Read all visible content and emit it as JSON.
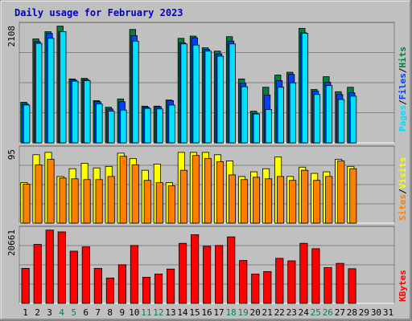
{
  "colors": {
    "background": "#c0c0c0",
    "plot_bg": "#c0c0c0",
    "title": "#0000cc",
    "hits": "#008040",
    "files": "#0040ff",
    "pages": "#00e0ff",
    "visits": "#ffff00",
    "sites": "#ff8000",
    "kbytes": "#ff0000",
    "axis_weekday": "#000000",
    "axis_weekend": "#00805c"
  },
  "chart_data": [
    {
      "type": "bar",
      "title": "Daily usage for February 2023",
      "ymax_label": "2108",
      "ylim": [
        0,
        2108
      ],
      "legend": [
        "Pages",
        "/",
        "Files",
        "/",
        "Hits"
      ],
      "categories": [
        "1",
        "2",
        "3",
        "4",
        "5",
        "6",
        "7",
        "8",
        "9",
        "10",
        "11",
        "12",
        "13",
        "14",
        "15",
        "16",
        "17",
        "18",
        "19",
        "20",
        "21",
        "22",
        "23",
        "24",
        "25",
        "26",
        "27",
        "28",
        "29",
        "30",
        "31"
      ],
      "weekend_days": [
        "4",
        "5",
        "11",
        "12",
        "18",
        "19",
        "25",
        "26"
      ],
      "series": [
        {
          "name": "Hits",
          "values": [
            730,
            1870,
            2000,
            2100,
            1150,
            1160,
            760,
            640,
            790,
            2040,
            660,
            660,
            770,
            1880,
            1920,
            1710,
            1650,
            1910,
            1150,
            570,
            1000,
            1220,
            1270,
            2060,
            960,
            1190,
            920,
            1000,
            0,
            0,
            0
          ]
        },
        {
          "name": "Files",
          "values": [
            700,
            1820,
            1970,
            2000,
            1130,
            1140,
            740,
            610,
            740,
            1930,
            640,
            650,
            760,
            1800,
            1890,
            1680,
            1600,
            1830,
            1070,
            530,
            860,
            1120,
            1230,
            1980,
            930,
            1090,
            870,
            900,
            0,
            0,
            0
          ]
        },
        {
          "name": "Pages",
          "values": [
            680,
            1790,
            1880,
            2000,
            1110,
            1120,
            700,
            570,
            590,
            1830,
            620,
            610,
            680,
            1780,
            1760,
            1650,
            1560,
            1780,
            1010,
            520,
            600,
            1000,
            1080,
            1970,
            870,
            1030,
            780,
            840,
            0,
            0,
            0
          ]
        }
      ]
    },
    {
      "type": "bar",
      "ymax_label": "95",
      "ylim": [
        0,
        95
      ],
      "legend": [
        "Sites",
        "/",
        "Visits"
      ],
      "categories": [
        "1",
        "2",
        "3",
        "4",
        "5",
        "6",
        "7",
        "8",
        "9",
        "10",
        "11",
        "12",
        "13",
        "14",
        "15",
        "16",
        "17",
        "18",
        "19",
        "20",
        "21",
        "22",
        "23",
        "24",
        "25",
        "26",
        "27",
        "28",
        "29",
        "30",
        "31"
      ],
      "series": [
        {
          "name": "Visits",
          "values": [
            52,
            88,
            91,
            60,
            70,
            77,
            71,
            73,
            90,
            83,
            68,
            76,
            52,
            91,
            91,
            91,
            88,
            80,
            60,
            66,
            70,
            85,
            60,
            72,
            64,
            66,
            82,
            73,
            0,
            0,
            0
          ]
        },
        {
          "name": "Sites",
          "values": [
            50,
            75,
            82,
            58,
            57,
            56,
            56,
            60,
            86,
            75,
            55,
            52,
            48,
            68,
            87,
            83,
            79,
            62,
            56,
            59,
            57,
            60,
            55,
            68,
            55,
            60,
            80,
            70,
            0,
            0,
            0
          ]
        }
      ]
    },
    {
      "type": "bar",
      "ymax_label": "20661",
      "ylim": [
        0,
        20661
      ],
      "legend": [
        "KBytes"
      ],
      "categories": [
        "1",
        "2",
        "3",
        "4",
        "5",
        "6",
        "7",
        "8",
        "9",
        "10",
        "11",
        "12",
        "13",
        "14",
        "15",
        "16",
        "17",
        "18",
        "19",
        "20",
        "21",
        "22",
        "23",
        "24",
        "25",
        "26",
        "27",
        "28",
        "29",
        "30",
        "31"
      ],
      "series": [
        {
          "name": "KBytes",
          "values": [
            9800,
            16500,
            20500,
            20000,
            14600,
            15800,
            9800,
            7100,
            10800,
            16200,
            7300,
            8200,
            9600,
            16800,
            19200,
            16000,
            16200,
            18600,
            12000,
            8200,
            8900,
            12600,
            11900,
            16800,
            15300,
            10000,
            11200,
            9700,
            0,
            0,
            0
          ]
        }
      ]
    }
  ]
}
